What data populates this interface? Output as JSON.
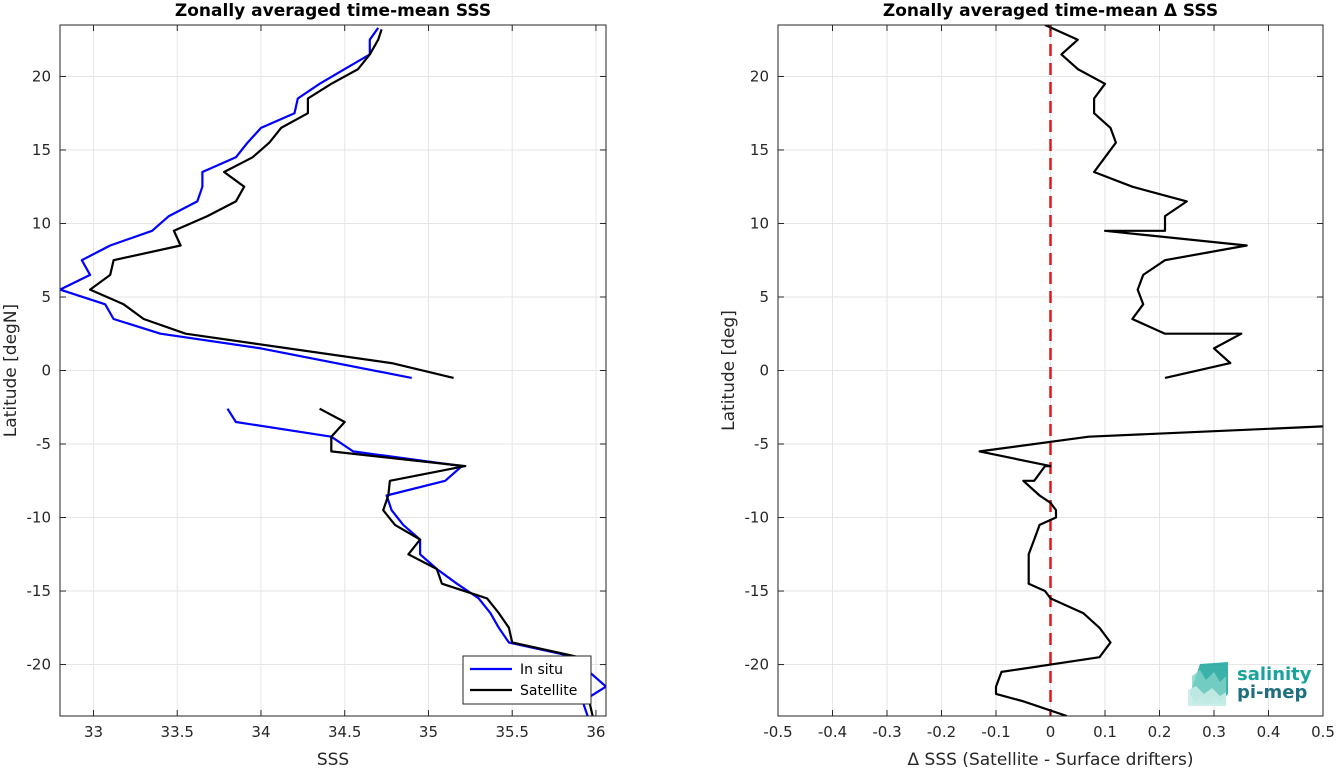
{
  "chart_data": [
    {
      "type": "line",
      "title": "Zonally averaged time-mean SSS",
      "xlabel": "SSS",
      "ylabel": "Latitude [degN]",
      "xlim": [
        32.8,
        36.06
      ],
      "ylim": [
        -23.5,
        23.5
      ],
      "xticks": [
        "33",
        "33.5",
        "34",
        "34.5",
        "35",
        "35.5",
        "36"
      ],
      "yticks": [
        "20",
        "15",
        "10",
        "5",
        "0",
        "-5",
        "-10",
        "-15",
        "-20"
      ],
      "grid": true,
      "legend_position": "bottom-right",
      "series": [
        {
          "name": "In situ",
          "color": "#0000ff",
          "segments": [
            [
              [
                34.7,
                23.3
              ],
              [
                34.65,
                22.5
              ],
              [
                34.65,
                21.5
              ],
              [
                34.5,
                20.5
              ],
              [
                34.35,
                19.5
              ],
              [
                34.22,
                18.5
              ],
              [
                34.2,
                17.5
              ],
              [
                34.0,
                16.5
              ],
              [
                33.92,
                15.5
              ],
              [
                33.85,
                14.5
              ],
              [
                33.65,
                13.5
              ],
              [
                33.65,
                12.5
              ],
              [
                33.62,
                11.5
              ],
              [
                33.45,
                10.5
              ],
              [
                33.35,
                9.5
              ],
              [
                33.1,
                8.5
              ],
              [
                32.93,
                7.5
              ],
              [
                32.98,
                6.5
              ],
              [
                32.8,
                5.5
              ],
              [
                33.07,
                4.5
              ],
              [
                33.12,
                3.5
              ],
              [
                33.4,
                2.5
              ],
              [
                34.0,
                1.5
              ],
              [
                34.9,
                -0.5
              ]
            ],
            [
              [
                33.8,
                -2.6
              ],
              [
                33.85,
                -3.5
              ],
              [
                34.42,
                -4.5
              ],
              [
                34.55,
                -5.5
              ],
              [
                35.2,
                -6.5
              ],
              [
                35.1,
                -7.5
              ],
              [
                34.75,
                -8.5
              ],
              [
                34.78,
                -9.5
              ],
              [
                34.85,
                -10.5
              ],
              [
                34.95,
                -11.5
              ],
              [
                34.95,
                -12.5
              ],
              [
                35.05,
                -13.5
              ],
              [
                35.17,
                -14.5
              ],
              [
                35.3,
                -15.5
              ],
              [
                35.37,
                -16.5
              ],
              [
                35.42,
                -17.5
              ],
              [
                35.48,
                -18.5
              ],
              [
                35.88,
                -19.5
              ],
              [
                35.96,
                -20.5
              ],
              [
                36.06,
                -21.5
              ],
              [
                35.92,
                -22.5
              ],
              [
                35.95,
                -23.5
              ]
            ]
          ]
        },
        {
          "name": "Satellite",
          "color": "#000000",
          "segments": [
            [
              [
                34.72,
                23.2
              ],
              [
                34.7,
                22.5
              ],
              [
                34.65,
                21.5
              ],
              [
                34.58,
                20.5
              ],
              [
                34.42,
                19.5
              ],
              [
                34.28,
                18.5
              ],
              [
                34.28,
                17.5
              ],
              [
                34.12,
                16.5
              ],
              [
                34.05,
                15.5
              ],
              [
                33.95,
                14.5
              ],
              [
                33.78,
                13.5
              ],
              [
                33.9,
                12.5
              ],
              [
                33.85,
                11.5
              ],
              [
                33.68,
                10.5
              ],
              [
                33.48,
                9.5
              ],
              [
                33.52,
                8.5
              ],
              [
                33.12,
                7.5
              ],
              [
                33.1,
                6.5
              ],
              [
                32.98,
                5.5
              ],
              [
                33.18,
                4.5
              ],
              [
                33.3,
                3.5
              ],
              [
                33.55,
                2.5
              ],
              [
                34.78,
                0.5
              ],
              [
                35.15,
                -0.5
              ]
            ],
            [
              [
                34.35,
                -2.6
              ],
              [
                34.5,
                -3.5
              ],
              [
                34.42,
                -4.5
              ],
              [
                34.42,
                -5.5
              ],
              [
                35.22,
                -6.5
              ],
              [
                34.77,
                -7.5
              ],
              [
                34.76,
                -8.5
              ],
              [
                34.73,
                -9.5
              ],
              [
                34.8,
                -10.5
              ],
              [
                34.95,
                -11.5
              ],
              [
                34.88,
                -12.5
              ],
              [
                35.05,
                -13.5
              ],
              [
                35.08,
                -14.5
              ],
              [
                35.35,
                -15.5
              ],
              [
                35.42,
                -16.5
              ],
              [
                35.48,
                -17.5
              ],
              [
                35.5,
                -18.5
              ],
              [
                35.9,
                -19.5
              ],
              [
                35.93,
                -20.5
              ],
              [
                35.94,
                -21.5
              ],
              [
                35.96,
                -22.5
              ],
              [
                35.98,
                -23.5
              ]
            ]
          ]
        }
      ]
    },
    {
      "type": "line",
      "title": "Zonally averaged time-mean Δ SSS",
      "xlabel": "Δ SSS (Satellite - Surface drifters)",
      "ylabel": "Latitude [deg]",
      "xlim": [
        -0.5,
        0.5
      ],
      "ylim": [
        -23.5,
        23.5
      ],
      "xticks": [
        "-0.5",
        "-0.4",
        "-0.3",
        "-0.2",
        "-0.1",
        "0",
        "0.1",
        "0.2",
        "0.3",
        "0.4",
        "0.5"
      ],
      "yticks": [
        "20",
        "15",
        "10",
        "5",
        "0",
        "-5",
        "-10",
        "-15",
        "-20"
      ],
      "grid": true,
      "reference_line": {
        "x": 0,
        "color": "#e21818",
        "style": "dashed"
      },
      "series": [
        {
          "color": "#000000",
          "segments": [
            [
              [
                -0.01,
                23.5
              ],
              [
                0.05,
                22.5
              ],
              [
                0.02,
                21.5
              ],
              [
                0.05,
                20.5
              ],
              [
                0.1,
                19.5
              ],
              [
                0.08,
                18.5
              ],
              [
                0.08,
                17.5
              ],
              [
                0.11,
                16.5
              ],
              [
                0.12,
                15.5
              ],
              [
                0.1,
                14.5
              ],
              [
                0.08,
                13.5
              ],
              [
                0.15,
                12.5
              ],
              [
                0.25,
                11.5
              ],
              [
                0.21,
                10.5
              ],
              [
                0.21,
                9.5
              ],
              [
                0.1,
                9.5
              ],
              [
                0.36,
                8.5
              ],
              [
                0.21,
                7.5
              ],
              [
                0.17,
                6.5
              ],
              [
                0.16,
                5.5
              ],
              [
                0.17,
                4.5
              ],
              [
                0.15,
                3.5
              ],
              [
                0.21,
                2.5
              ],
              [
                0.35,
                2.5
              ],
              [
                0.3,
                1.5
              ],
              [
                0.33,
                0.5
              ],
              [
                0.21,
                -0.5
              ]
            ],
            [
              [
                0.5,
                -3.8
              ],
              [
                0.07,
                -4.5
              ],
              [
                -0.13,
                -5.5
              ],
              [
                0.0,
                -6.5
              ],
              [
                -0.01,
                -6.5
              ],
              [
                -0.03,
                -7.5
              ],
              [
                -0.05,
                -7.5
              ],
              [
                -0.02,
                -8.5
              ],
              [
                0.0,
                -9.0
              ],
              [
                0.01,
                -9.5
              ],
              [
                0.01,
                -10.0
              ],
              [
                -0.02,
                -10.5
              ],
              [
                -0.03,
                -11.5
              ],
              [
                -0.04,
                -12.5
              ],
              [
                -0.04,
                -13.5
              ],
              [
                -0.04,
                -14.5
              ],
              [
                -0.01,
                -15.0
              ],
              [
                0.0,
                -15.5
              ],
              [
                0.06,
                -16.5
              ],
              [
                0.09,
                -17.5
              ],
              [
                0.11,
                -18.5
              ],
              [
                0.09,
                -19.5
              ],
              [
                -0.09,
                -20.5
              ],
              [
                -0.1,
                -21.5
              ],
              [
                -0.1,
                -22.0
              ],
              [
                -0.05,
                -22.5
              ],
              [
                0.03,
                -23.5
              ]
            ]
          ]
        }
      ]
    }
  ],
  "logo": {
    "line1": "salinity",
    "line2": "pi-mep"
  }
}
